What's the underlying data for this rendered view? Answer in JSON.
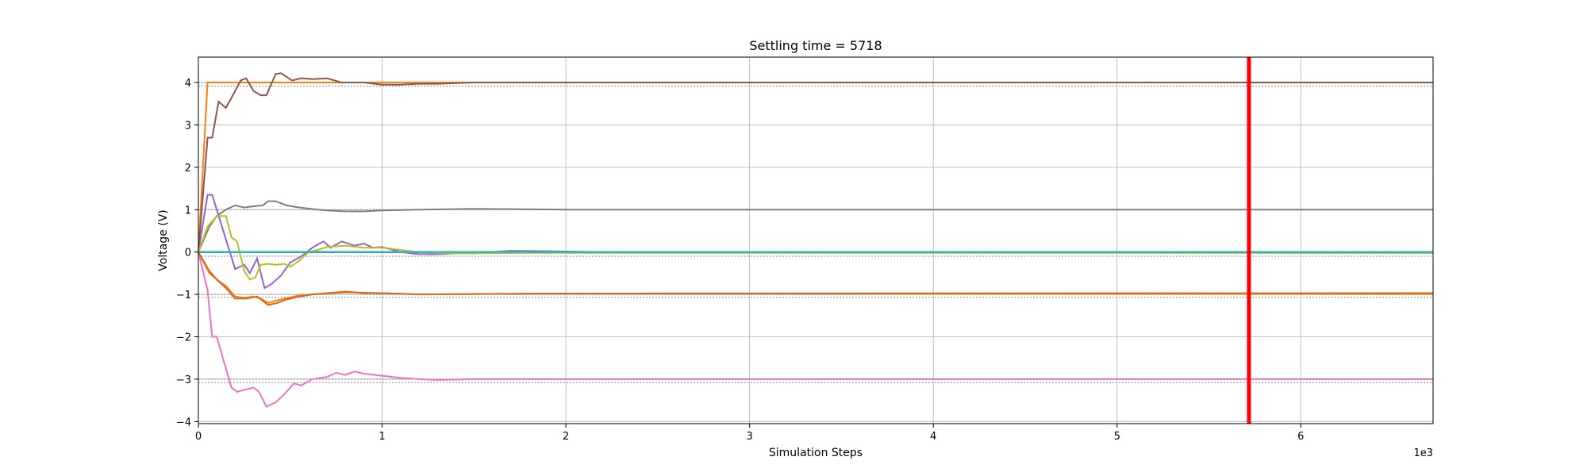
{
  "chart_data": {
    "type": "line",
    "title": "Settling time = 5718",
    "xlabel": "Simulation Steps",
    "ylabel": "Voltage (V)",
    "x_offset_text": "1e3",
    "xlim": [
      0,
      6720
    ],
    "ylim": [
      -4.05,
      4.6
    ],
    "xticks": [
      0,
      1000,
      2000,
      3000,
      4000,
      5000,
      6000
    ],
    "xtick_labels": [
      "0",
      "1",
      "2",
      "3",
      "4",
      "5",
      "6"
    ],
    "yticks": [
      -4,
      -3,
      -2,
      -1,
      0,
      1,
      2,
      3,
      4
    ],
    "ytick_labels": [
      "−4",
      "−3",
      "−2",
      "−1",
      "0",
      "1",
      "2",
      "3",
      "4"
    ],
    "grid": true,
    "settling_time": 5718,
    "settling_color": "#ff0000",
    "reference_lines": [
      4.0,
      3.92,
      1.0,
      -0.1,
      -1.0,
      -1.07,
      -3.0,
      -3.08
    ],
    "reference_color": "#888888",
    "series": [
      {
        "color": "#1f77b4",
        "points": [
          [
            0,
            0
          ],
          [
            6720,
            0
          ]
        ]
      },
      {
        "color": "#ff7f0e",
        "points": [
          [
            0,
            0
          ],
          [
            50,
            4.0
          ],
          [
            6720,
            4.0
          ]
        ]
      },
      {
        "color": "#2ca02c",
        "points": [
          [
            0,
            0
          ],
          [
            6720,
            -0.02
          ]
        ]
      },
      {
        "color": "#d62728",
        "points": [
          [
            0,
            0
          ],
          [
            6720,
            0.0
          ]
        ]
      },
      {
        "color": "#9467bd",
        "points": [
          [
            0,
            0
          ],
          [
            50,
            1.35
          ],
          [
            75,
            1.35
          ],
          [
            150,
            0.3
          ],
          [
            200,
            -0.4
          ],
          [
            250,
            -0.3
          ],
          [
            280,
            -0.5
          ],
          [
            320,
            -0.15
          ],
          [
            360,
            -0.85
          ],
          [
            400,
            -0.75
          ],
          [
            450,
            -0.55
          ],
          [
            500,
            -0.25
          ],
          [
            560,
            -0.1
          ],
          [
            620,
            0.1
          ],
          [
            680,
            0.25
          ],
          [
            720,
            0.1
          ],
          [
            780,
            0.25
          ],
          [
            850,
            0.15
          ],
          [
            900,
            0.2
          ],
          [
            950,
            0.1
          ],
          [
            1000,
            0.12
          ],
          [
            1100,
            0.0
          ],
          [
            1200,
            -0.05
          ],
          [
            1300,
            -0.05
          ],
          [
            1400,
            -0.03
          ],
          [
            1500,
            -0.03
          ],
          [
            1700,
            0.03
          ],
          [
            1900,
            0.02
          ],
          [
            2200,
            0.0
          ],
          [
            6720,
            0.0
          ]
        ]
      },
      {
        "color": "#8c564b",
        "points": [
          [
            0,
            0
          ],
          [
            50,
            2.7
          ],
          [
            75,
            2.7
          ],
          [
            110,
            3.55
          ],
          [
            150,
            3.4
          ],
          [
            200,
            3.8
          ],
          [
            230,
            4.05
          ],
          [
            260,
            4.1
          ],
          [
            300,
            3.8
          ],
          [
            340,
            3.7
          ],
          [
            370,
            3.7
          ],
          [
            420,
            4.2
          ],
          [
            450,
            4.22
          ],
          [
            510,
            4.05
          ],
          [
            560,
            4.1
          ],
          [
            620,
            4.08
          ],
          [
            700,
            4.1
          ],
          [
            780,
            4.0
          ],
          [
            900,
            4.0
          ],
          [
            1000,
            3.95
          ],
          [
            1100,
            3.95
          ],
          [
            1200,
            3.97
          ],
          [
            1300,
            3.97
          ],
          [
            1500,
            4.0
          ],
          [
            1700,
            4.0
          ],
          [
            6720,
            4.0
          ]
        ]
      },
      {
        "color": "#e377c2",
        "points": [
          [
            0,
            0
          ],
          [
            50,
            -0.9
          ],
          [
            75,
            -2.0
          ],
          [
            100,
            -2.0
          ],
          [
            140,
            -2.6
          ],
          [
            180,
            -3.2
          ],
          [
            210,
            -3.3
          ],
          [
            250,
            -3.25
          ],
          [
            300,
            -3.2
          ],
          [
            330,
            -3.3
          ],
          [
            370,
            -3.65
          ],
          [
            420,
            -3.55
          ],
          [
            470,
            -3.35
          ],
          [
            520,
            -3.1
          ],
          [
            560,
            -3.15
          ],
          [
            620,
            -3.0
          ],
          [
            700,
            -2.95
          ],
          [
            750,
            -2.85
          ],
          [
            800,
            -2.9
          ],
          [
            850,
            -2.82
          ],
          [
            900,
            -2.87
          ],
          [
            1000,
            -2.92
          ],
          [
            1100,
            -2.97
          ],
          [
            1200,
            -3.0
          ],
          [
            1300,
            -3.02
          ],
          [
            1500,
            -3.0
          ],
          [
            1700,
            -3.0
          ],
          [
            2000,
            -3.0
          ],
          [
            6720,
            -3.0
          ]
        ]
      },
      {
        "color": "#7f7f7f",
        "points": [
          [
            0,
            0
          ],
          [
            60,
            0.6
          ],
          [
            100,
            0.85
          ],
          [
            150,
            1.0
          ],
          [
            200,
            1.1
          ],
          [
            250,
            1.05
          ],
          [
            300,
            1.08
          ],
          [
            350,
            1.1
          ],
          [
            380,
            1.2
          ],
          [
            420,
            1.2
          ],
          [
            480,
            1.1
          ],
          [
            550,
            1.05
          ],
          [
            650,
            1.0
          ],
          [
            700,
            0.98
          ],
          [
            800,
            0.96
          ],
          [
            900,
            0.96
          ],
          [
            1000,
            0.98
          ],
          [
            1200,
            1.0
          ],
          [
            1500,
            1.02
          ],
          [
            2000,
            1.0
          ],
          [
            6720,
            1.0
          ]
        ]
      },
      {
        "color": "#bcbd22",
        "points": [
          [
            0,
            0
          ],
          [
            50,
            0.6
          ],
          [
            100,
            0.85
          ],
          [
            150,
            0.85
          ],
          [
            180,
            0.35
          ],
          [
            210,
            0.25
          ],
          [
            250,
            -0.45
          ],
          [
            280,
            -0.65
          ],
          [
            310,
            -0.6
          ],
          [
            340,
            -0.3
          ],
          [
            380,
            -0.28
          ],
          [
            420,
            -0.3
          ],
          [
            470,
            -0.28
          ],
          [
            500,
            -0.35
          ],
          [
            550,
            -0.2
          ],
          [
            600,
            0.0
          ],
          [
            650,
            0.05
          ],
          [
            700,
            0.12
          ],
          [
            800,
            0.15
          ],
          [
            900,
            0.1
          ],
          [
            1000,
            0.1
          ],
          [
            1100,
            0.05
          ],
          [
            1200,
            0.0
          ],
          [
            1300,
            -0.02
          ],
          [
            1500,
            -0.03
          ],
          [
            1800,
            -0.02
          ],
          [
            6720,
            -0.02
          ]
        ]
      },
      {
        "color": "#17becf",
        "points": [
          [
            0,
            0
          ],
          [
            6720,
            0.0
          ]
        ]
      },
      {
        "color": "#ff7f0e",
        "points": [
          [
            0,
            0
          ],
          [
            60,
            -0.5
          ],
          [
            100,
            -0.65
          ],
          [
            150,
            -0.8
          ],
          [
            200,
            -1.05
          ],
          [
            250,
            -1.08
          ],
          [
            300,
            -1.05
          ],
          [
            340,
            -1.1
          ],
          [
            380,
            -1.2
          ],
          [
            420,
            -1.15
          ],
          [
            470,
            -1.1
          ],
          [
            550,
            -1.02
          ],
          [
            620,
            -1.0
          ],
          [
            700,
            -0.97
          ],
          [
            800,
            -0.93
          ],
          [
            900,
            -0.97
          ],
          [
            1000,
            -0.97
          ],
          [
            1200,
            -1.0
          ],
          [
            1500,
            -0.99
          ],
          [
            2000,
            -0.98
          ],
          [
            6720,
            -0.99
          ]
        ]
      },
      {
        "color": "#d2691e",
        "points": [
          [
            0,
            0
          ],
          [
            60,
            -0.45
          ],
          [
            100,
            -0.65
          ],
          [
            150,
            -0.85
          ],
          [
            200,
            -1.1
          ],
          [
            260,
            -1.1
          ],
          [
            320,
            -1.05
          ],
          [
            380,
            -1.25
          ],
          [
            430,
            -1.2
          ],
          [
            480,
            -1.12
          ],
          [
            550,
            -1.05
          ],
          [
            620,
            -1.0
          ],
          [
            700,
            -0.98
          ],
          [
            800,
            -0.95
          ],
          [
            900,
            -0.96
          ],
          [
            1000,
            -0.97
          ],
          [
            1200,
            -1.0
          ],
          [
            1500,
            -0.99
          ],
          [
            2000,
            -0.98
          ],
          [
            6720,
            -0.97
          ]
        ]
      }
    ]
  }
}
